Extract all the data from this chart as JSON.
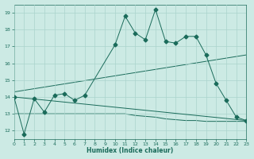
{
  "xlabel": "Humidex (Indice chaleur)",
  "x_values": [
    0,
    1,
    2,
    3,
    4,
    5,
    6,
    7,
    8,
    9,
    10,
    11,
    12,
    13,
    14,
    15,
    16,
    17,
    18,
    19,
    20,
    21,
    22,
    23
  ],
  "line1": [
    14.0,
    11.8,
    13.9,
    13.1,
    14.1,
    14.2,
    13.8,
    14.1,
    null,
    null,
    17.1,
    18.8,
    17.8,
    17.4,
    19.2,
    17.3,
    17.2,
    17.6,
    17.6,
    16.5,
    14.8,
    13.8,
    12.8,
    12.6
  ],
  "line2_x": [
    0,
    23
  ],
  "line2_y": [
    14.0,
    12.6
  ],
  "line3": [
    13.0,
    13.0,
    13.0,
    13.0,
    13.0,
    13.0,
    13.0,
    13.0,
    13.0,
    13.0,
    13.0,
    13.0,
    12.9,
    12.85,
    12.8,
    12.7,
    12.65,
    12.6,
    12.6,
    12.55,
    12.55,
    12.55,
    12.55,
    12.55
  ],
  "line4_x": [
    0,
    23
  ],
  "line4_y": [
    14.3,
    16.5
  ],
  "background_color": "#cceae4",
  "grid_color": "#aad4cc",
  "line_color": "#1a6b5a",
  "ylim": [
    11.5,
    19.5
  ],
  "xlim": [
    0,
    23
  ],
  "yticks": [
    12,
    13,
    14,
    15,
    16,
    17,
    18,
    19
  ],
  "xticks": [
    0,
    1,
    2,
    3,
    4,
    5,
    6,
    7,
    8,
    9,
    10,
    11,
    12,
    13,
    14,
    15,
    16,
    17,
    18,
    19,
    20,
    21,
    22,
    23
  ]
}
